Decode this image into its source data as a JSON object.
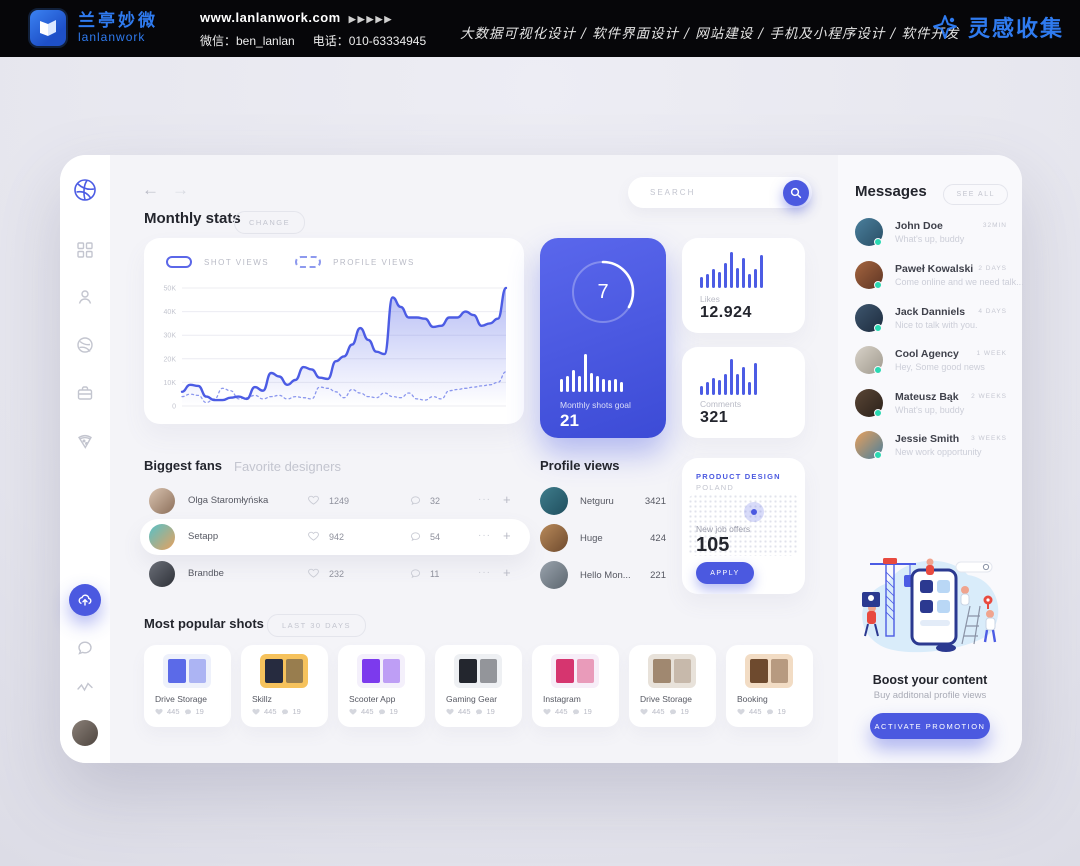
{
  "banner": {
    "brand_cn": "兰亭妙微",
    "brand_en": "lanlanwork",
    "website": "www.lanlanwork.com",
    "website_arrows": "▶▶▶▶▶",
    "wechat": "微信：ben_lanlan",
    "phone": "电话：010-63334945",
    "services": "大数据可视化设计 / 软件界面设计 / 网站建设 / 手机及小程序设计 / 软件开发",
    "right_brand": "灵感收集",
    "accent": "#2f7bf0"
  },
  "topbar": {
    "search_placeholder": "SEARCH",
    "back": "←",
    "forward": "→"
  },
  "monthly_stats": {
    "title": "Monthly stats",
    "change_button": "CHANGE"
  },
  "chart_data": {
    "type": "line",
    "title": "Monthly stats",
    "legend": [
      "SHOT VIEWS",
      "PROFILE VIEWS"
    ],
    "legend_position": "top-left",
    "ylabel_ticks": [
      "0",
      "10K",
      "20K",
      "30K",
      "40K",
      "50K"
    ],
    "ylim": [
      0,
      50000
    ],
    "grid": true,
    "units": "K",
    "series": [
      {
        "name": "SHOT VIEWS",
        "style": "solid",
        "color": "#4c5ce4",
        "fill": true,
        "values": [
          6,
          9,
          8.5,
          4,
          2.5,
          2.5,
          3.5,
          4,
          3,
          8,
          6.5,
          14,
          12.5,
          9,
          11,
          16.5,
          15.5,
          12,
          11.5,
          19,
          21,
          26,
          33,
          28,
          23,
          22,
          46,
          42,
          37.5,
          37.5,
          37,
          33.5,
          34,
          37.5,
          37.5,
          40,
          38.5,
          34,
          35,
          37,
          50
        ]
      },
      {
        "name": "PROFILE VIEWS",
        "style": "dashed",
        "color": "#8d99ee",
        "fill": false,
        "values": [
          4,
          5,
          4.5,
          1.5,
          3,
          7.5,
          6.5,
          3,
          3.5,
          4.5,
          3,
          4,
          4.5,
          3,
          4,
          3.5,
          3,
          8,
          7.5,
          6,
          3.5,
          7,
          5.5,
          4,
          3.5,
          5.5,
          4,
          3.5,
          5.5,
          3,
          2.5,
          4,
          3,
          6.5,
          7,
          7.5,
          8,
          8.5,
          9,
          10,
          14.5
        ]
      }
    ]
  },
  "goal_card": {
    "current": "7",
    "total": 21,
    "label": "Monthly shots goal",
    "value": "21",
    "bars": [
      9,
      11,
      15,
      11,
      26,
      13,
      11,
      9,
      8,
      9,
      7
    ],
    "bar_color": "#ffffff",
    "bg": "#4b59e0"
  },
  "likes_card": {
    "label": "Likes",
    "value": "12.924",
    "bars": [
      7,
      9,
      12,
      10,
      16,
      23,
      13,
      19,
      9,
      12,
      21
    ],
    "bar_color": "#4c5ce4"
  },
  "comments_card": {
    "label": "Comments",
    "value": "321",
    "bars": [
      5,
      7,
      9,
      8,
      11,
      19,
      11,
      15,
      7,
      17
    ],
    "bar_color": "#4c5ce4"
  },
  "fans": {
    "tab_active": "Biggest fans",
    "tab_inactive": "Favorite designers",
    "items": [
      {
        "name": "Olga Staromłyńska",
        "likes": "1249",
        "comments": "32",
        "more": "···",
        "add": "+",
        "avatar": {
          "from": "#d9c3b0",
          "to": "#8c6f5a"
        }
      },
      {
        "name": "Setapp",
        "likes": "942",
        "comments": "54",
        "more": "···",
        "add": "+",
        "avatar": {
          "from": "#55c1c9",
          "to": "#e8a05c"
        }
      },
      {
        "name": "Brandbe",
        "likes": "232",
        "comments": "11",
        "more": "···",
        "add": "+",
        "avatar": {
          "from": "#6b6f78",
          "to": "#2e3138"
        }
      }
    ]
  },
  "profile_views": {
    "title": "Profile views",
    "items": [
      {
        "name": "Netguru",
        "value": "3421",
        "avatar": {
          "from": "#3f7d8c",
          "to": "#1f4e5e"
        }
      },
      {
        "name": "Huge",
        "value": "424",
        "avatar": {
          "from": "#b98a5a",
          "to": "#6e4a2e"
        }
      },
      {
        "name": "Hello Mon...",
        "value": "221",
        "avatar": {
          "from": "#9aa3ad",
          "to": "#5c666f"
        }
      }
    ]
  },
  "job_card": {
    "heading": "PRODUCT DESIGN",
    "subheading": "POLAND",
    "label": "New job offers",
    "value": "105",
    "button": "APPLY",
    "accent": "#4b59e0"
  },
  "shots": {
    "title": "Most popular shots",
    "filter": "LAST 30 DAYS",
    "items": [
      {
        "name": "Drive Storage",
        "likes": "445",
        "comments": "19",
        "colors": {
          "bg": "#eef1fb",
          "fg": "#5b6ae8"
        }
      },
      {
        "name": "Skillz",
        "likes": "445",
        "comments": "19",
        "colors": {
          "bg": "#f6c25c",
          "fg": "#262b3f"
        }
      },
      {
        "name": "Scooter App",
        "likes": "445",
        "comments": "19",
        "colors": {
          "bg": "#f4f0fb",
          "fg": "#7c3aed"
        }
      },
      {
        "name": "Gaming Gear",
        "likes": "445",
        "comments": "19",
        "colors": {
          "bg": "#eef0f3",
          "fg": "#23262e"
        }
      },
      {
        "name": "Instagram",
        "likes": "445",
        "comments": "19",
        "colors": {
          "bg": "#f7eef8",
          "fg": "#d6356f"
        }
      },
      {
        "name": "Drive Storage",
        "likes": "445",
        "comments": "19",
        "colors": {
          "bg": "#e8e2da",
          "fg": "#a08870"
        }
      },
      {
        "name": "Booking",
        "likes": "445",
        "comments": "19",
        "colors": {
          "bg": "#f2dcc4",
          "fg": "#6e4a2e"
        }
      }
    ]
  },
  "messages": {
    "title": "Messages",
    "see_all": "SEE ALL",
    "items": [
      {
        "name": "John Doe",
        "time": "32MIN",
        "preview": "What's up, buddy",
        "avatar": {
          "from": "#4a7f9c",
          "to": "#2a4f66"
        }
      },
      {
        "name": "Paweł Kowalski",
        "time": "2 DAYS",
        "preview": "Come online and we need talk...",
        "avatar": {
          "from": "#a5653f",
          "to": "#5e3524"
        }
      },
      {
        "name": "Jack Danniels",
        "time": "4 DAYS",
        "preview": "Nice to talk with you.",
        "avatar": {
          "from": "#3e566e",
          "to": "#1d2c3e"
        }
      },
      {
        "name": "Cool Agency",
        "time": "1 WEEK",
        "preview": "Hey, Some good news",
        "avatar": {
          "from": "#d8d2c8",
          "to": "#a09a8e"
        }
      },
      {
        "name": "Mateusz Bąk",
        "time": "2 WEEKS",
        "preview": "What's up, buddy",
        "avatar": {
          "from": "#5a4636",
          "to": "#2b211a"
        }
      },
      {
        "name": "Jessie Smith",
        "time": "3 WEEKS",
        "preview": "New work opportunity",
        "avatar": {
          "from": "#e8a05c",
          "to": "#4a7f9c"
        }
      }
    ]
  },
  "boost": {
    "title": "Boost your content",
    "subtitle": "Buy additonal profile views",
    "button": "ACTIVATE PROMOTION"
  },
  "sidebar": {
    "user_avatar": {
      "from": "#8a8078",
      "to": "#4e453f"
    },
    "icons": [
      "dribbble-logo",
      "grid",
      "user",
      "ball",
      "briefcase",
      "pizza",
      "upload",
      "chat",
      "activity",
      "avatar"
    ]
  },
  "colors": {
    "accent": "#4b59e0",
    "page_bg": "#e8e8f0",
    "panel_bg": "#f4f4f8",
    "green_dot": "#2bd9b2"
  }
}
